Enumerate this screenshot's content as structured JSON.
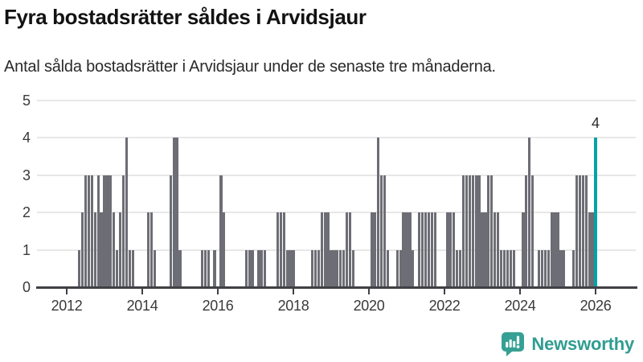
{
  "header": {
    "title": "Fyra bostadsrätter såldes i Arvidsjaur",
    "subtitle": "Antal sålda bostadsrätter i Arvidsjaur under de senaste tre månaderna."
  },
  "chart_data": {
    "type": "bar",
    "title": "Fyra bostadsrätter såldes i Arvidsjaur",
    "subtitle": "Antal sålda bostadsrätter i Arvidsjaur under de senaste tre månaderna.",
    "x_unit": "month",
    "start_month": "2012-01",
    "end_month": "2026-01",
    "x_tick_labels": [
      "2012",
      "2014",
      "2016",
      "2018",
      "2020",
      "2022",
      "2024",
      "2026"
    ],
    "y_tick_labels": [
      "0",
      "1",
      "2",
      "3",
      "4",
      "5"
    ],
    "ylim": [
      0,
      5
    ],
    "grid": true,
    "bar_color": "#6d6d75",
    "values": [
      0,
      0,
      0,
      0,
      1,
      2,
      3,
      3,
      3,
      2,
      3,
      2,
      3,
      3,
      3,
      2,
      1,
      2,
      3,
      4,
      1,
      1,
      0,
      0,
      0,
      0,
      2,
      2,
      1,
      0,
      0,
      0,
      0,
      3,
      4,
      4,
      1,
      0,
      0,
      0,
      0,
      0,
      0,
      1,
      1,
      1,
      0,
      1,
      0,
      3,
      2,
      0,
      0,
      0,
      0,
      0,
      0,
      1,
      1,
      1,
      0,
      1,
      1,
      1,
      0,
      0,
      0,
      2,
      2,
      2,
      1,
      1,
      1,
      0,
      0,
      0,
      0,
      0,
      1,
      1,
      1,
      2,
      2,
      2,
      1,
      1,
      1,
      1,
      1,
      2,
      2,
      1,
      0,
      0,
      0,
      0,
      0,
      2,
      2,
      4,
      3,
      3,
      1,
      0,
      0,
      1,
      1,
      2,
      2,
      2,
      1,
      0,
      2,
      2,
      2,
      2,
      2,
      2,
      0,
      0,
      0,
      2,
      2,
      2,
      1,
      1,
      3,
      3,
      3,
      3,
      3,
      3,
      2,
      2,
      3,
      3,
      2,
      2,
      1,
      1,
      1,
      1,
      1,
      0,
      0,
      2,
      3,
      4,
      3,
      0,
      1,
      1,
      1,
      1,
      2,
      2,
      2,
      1,
      1,
      0,
      0,
      1,
      3,
      3,
      3,
      3,
      2,
      2,
      4
    ],
    "highlight": {
      "index": 168,
      "value": 4,
      "label": "4",
      "color": "#00a3a9"
    }
  },
  "footer": {
    "brand": "Newsworthy"
  },
  "colors": {
    "accent": "#00a3a9",
    "bar": "#6d6d75",
    "brand": "#2f9d91",
    "grid": "#e7e7e7",
    "axis": "#404045",
    "text": "#121212"
  }
}
